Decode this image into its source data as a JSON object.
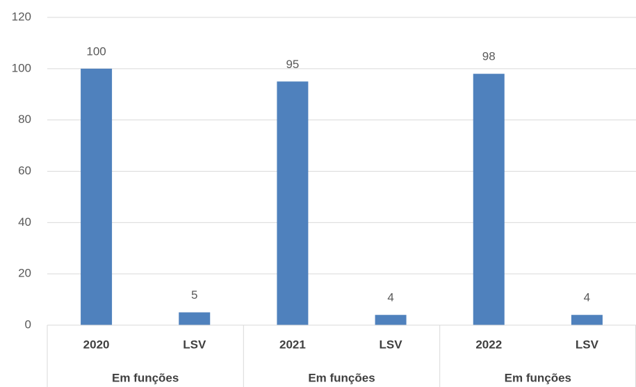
{
  "chart_data": {
    "type": "bar",
    "categories": [
      "2020",
      "LSV",
      "2021",
      "LSV",
      "2022",
      "LSV"
    ],
    "group_labels": [
      "Em funções",
      "Em funções",
      "Em funções"
    ],
    "values": [
      100,
      5,
      95,
      4,
      98,
      4
    ],
    "color": "#4f81bd",
    "ylim": [
      0,
      120
    ],
    "yticks": [
      0,
      20,
      40,
      60,
      80,
      100,
      120
    ],
    "grid": true
  }
}
